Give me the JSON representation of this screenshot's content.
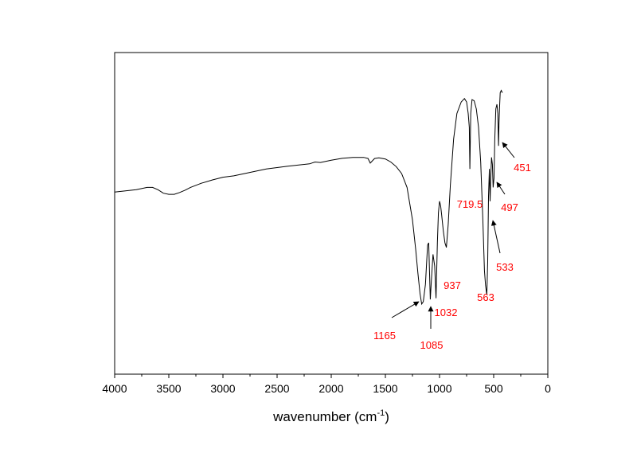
{
  "chart_data": {
    "type": "line",
    "title": "",
    "xlabel": "wavenumber (cm",
    "xlabel_superscript": "-1",
    "xlabel_suffix": ")",
    "ylabel": "",
    "xlim": [
      4000,
      0
    ],
    "x_reversed": true,
    "x_ticks": [
      4000,
      3500,
      3000,
      2500,
      2000,
      1500,
      1000,
      500,
      0
    ],
    "y_ticks": [],
    "ylim": [
      0,
      100
    ],
    "grid": false,
    "legend": "none",
    "line_color": "#000000",
    "annotation_color": "#ff0000",
    "series": [
      {
        "x": [
          4000,
          3800,
          3700,
          3650,
          3600,
          3550,
          3500,
          3450,
          3400,
          3350,
          3300,
          3200,
          3100,
          3000,
          2950,
          2900,
          2800,
          2600,
          2400,
          2200,
          2150,
          2100,
          2000,
          1900,
          1800,
          1700,
          1660,
          1640,
          1600,
          1560,
          1500,
          1450,
          1400,
          1350,
          1300,
          1250,
          1220,
          1200,
          1180,
          1165,
          1150,
          1130,
          1110,
          1100,
          1085,
          1075,
          1060,
          1045,
          1032,
          1020,
          1010,
          1000,
          990,
          980,
          965,
          950,
          937,
          920,
          900,
          870,
          840,
          800,
          770,
          750,
          735,
          725,
          719.5,
          712,
          700,
          680,
          660,
          640,
          620,
          600,
          585,
          575,
          563,
          555,
          548,
          540,
          533,
          527,
          520,
          512,
          505,
          497,
          490,
          480,
          470,
          462,
          455,
          451,
          446,
          440,
          430,
          420
        ],
        "y": [
          52,
          53,
          54,
          54,
          53,
          51.5,
          51,
          51,
          51.8,
          52.8,
          54,
          55.8,
          57.2,
          58.4,
          58.7,
          59,
          60,
          62,
          63.2,
          64.2,
          65,
          64.8,
          65.8,
          66.6,
          67,
          67,
          66.5,
          64.5,
          66.5,
          66.8,
          66.3,
          65,
          63,
          60,
          54,
          40,
          27,
          17,
          8,
          3.5,
          4.5,
          12,
          29,
          30,
          5.5,
          14,
          25,
          20,
          6,
          30,
          43,
          48,
          46,
          42,
          35,
          30,
          28,
          38,
          55,
          75,
          86,
          91,
          92.5,
          91,
          86,
          80,
          62,
          86,
          92,
          91.5,
          88,
          80,
          65,
          40,
          18,
          11.5,
          7.5,
          22,
          50,
          62,
          48,
          58,
          67,
          64,
          54,
          58,
          75,
          88,
          90,
          86,
          72,
          82,
          88,
          95,
          96,
          95
        ]
      }
    ],
    "annotations": [
      {
        "label": "1165",
        "x": 1165
      },
      {
        "label": "1085",
        "x": 1085
      },
      {
        "label": "1032",
        "x": 1032
      },
      {
        "label": "937",
        "x": 937
      },
      {
        "label": "719.5",
        "x": 719.5
      },
      {
        "label": "563",
        "x": 563
      },
      {
        "label": "533",
        "x": 533
      },
      {
        "label": "497",
        "x": 497
      },
      {
        "label": "451",
        "x": 451
      }
    ]
  }
}
